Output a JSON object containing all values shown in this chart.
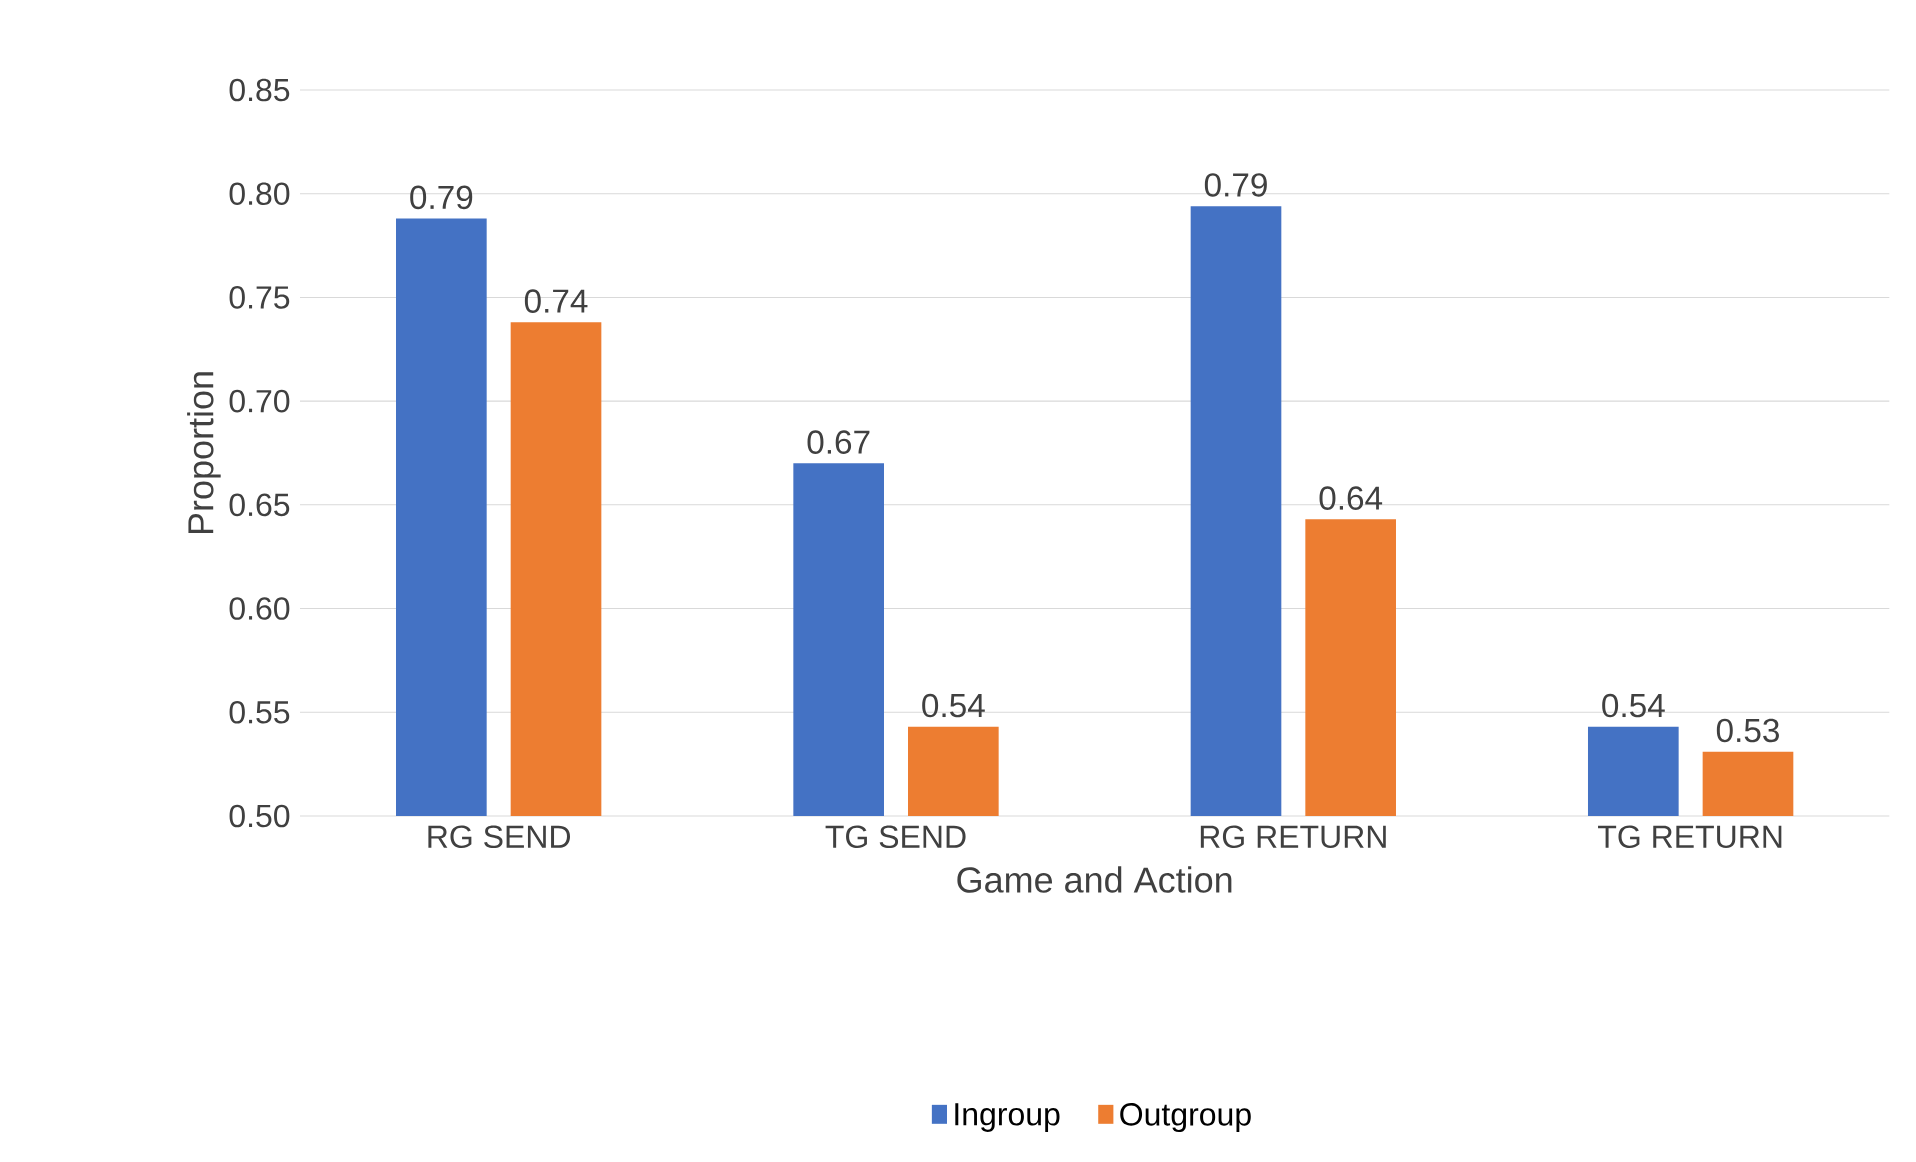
{
  "chart_data": {
    "type": "bar",
    "xlabel": "Game and Action",
    "ylabel": "Proportion",
    "categories": [
      "RG SEND",
      "TG SEND",
      "RG RETURN",
      "TG RETURN"
    ],
    "series": [
      {
        "name": "Ingroup",
        "color": "#4472c4",
        "values": [
          0.788,
          0.67,
          0.794,
          0.543
        ],
        "value_labels": [
          "0.79",
          "0.67",
          "0.79",
          "0.54"
        ]
      },
      {
        "name": "Outgroup",
        "color": "#ed7d31",
        "values": [
          0.738,
          0.543,
          0.643,
          0.531
        ],
        "value_labels": [
          "0.74",
          "0.54",
          "0.64",
          "0.53"
        ]
      }
    ],
    "ylim": [
      0.5,
      0.85
    ],
    "yticks": [
      "0.50",
      "0.55",
      "0.60",
      "0.65",
      "0.70",
      "0.75",
      "0.80",
      "0.85"
    ],
    "grid": "y",
    "legend": "bottom"
  }
}
